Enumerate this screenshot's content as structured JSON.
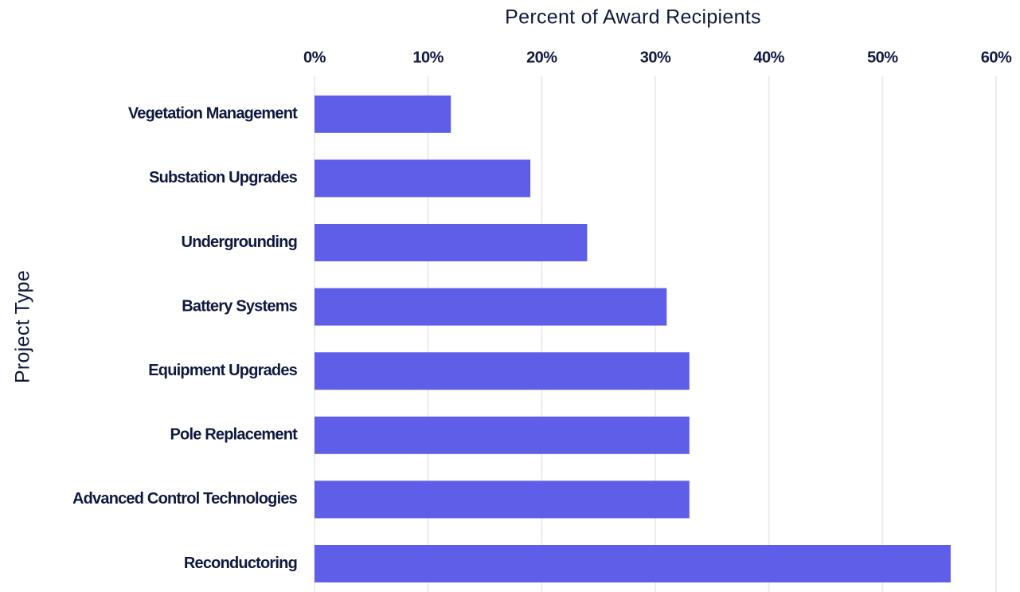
{
  "chart_data": {
    "type": "bar",
    "orientation": "horizontal",
    "x_label": "Percent of Award Recipients",
    "y_label": "Project Type",
    "categories": [
      "Vegetation Management",
      "Substation Upgrades",
      "Undergrounding",
      "Battery Systems",
      "Equipment Upgrades",
      "Pole Replacement",
      "Advanced Control Technologies",
      "Reconductoring"
    ],
    "values": [
      12,
      19,
      24,
      31,
      33,
      33,
      33,
      56
    ],
    "color": "#5e5ee8",
    "xlim": [
      0,
      60
    ],
    "xticks": [
      {
        "value": 0,
        "label": "0%"
      },
      {
        "value": 10,
        "label": "10%"
      },
      {
        "value": 20,
        "label": "20%"
      },
      {
        "value": 30,
        "label": "30%"
      },
      {
        "value": 40,
        "label": "40%"
      },
      {
        "value": 50,
        "label": "50%"
      },
      {
        "value": 60,
        "label": "60%"
      }
    ],
    "grid": true
  }
}
